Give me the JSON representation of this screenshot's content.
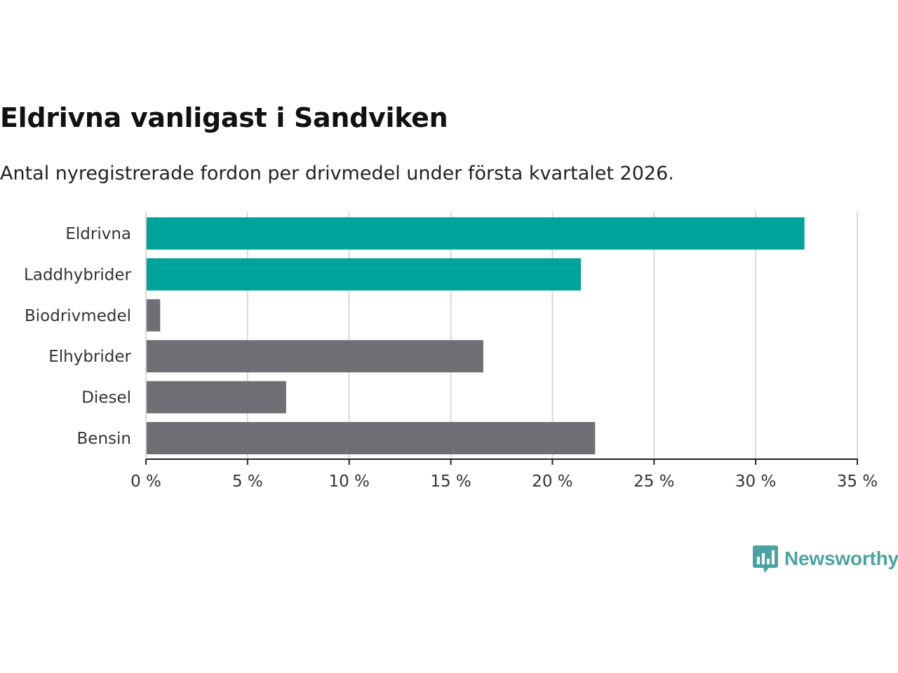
{
  "title": "Eldrivna vanligast i Sandviken",
  "subtitle": "Antal nyregistrerade fordon per drivmedel under första kvartalet 2026.",
  "brand": "Newsworthy",
  "colors": {
    "highlight": "#00a39a",
    "default": "#6f6e75",
    "grid": "#d9d9d9",
    "axis": "#222222",
    "brand": "#4aa3a2"
  },
  "chart_data": {
    "type": "bar",
    "orientation": "horizontal",
    "title": "Eldrivna vanligast i Sandviken",
    "subtitle": "Antal nyregistrerade fordon per drivmedel under första kvartalet 2026.",
    "categories": [
      "Eldrivna",
      "Laddhybrider",
      "Biodrivmedel",
      "Elhybrider",
      "Diesel",
      "Bensin"
    ],
    "values": [
      32.4,
      21.4,
      0.7,
      16.6,
      6.9,
      22.1
    ],
    "highlighted": [
      true,
      true,
      false,
      false,
      false,
      false
    ],
    "unit": "%",
    "xlim": [
      0,
      35
    ],
    "xticks": [
      0,
      5,
      10,
      15,
      20,
      25,
      30,
      35
    ],
    "tick_labels": [
      "0 %",
      "5 %",
      "10 %",
      "15 %",
      "20 %",
      "25 %",
      "30 %",
      "35 %"
    ],
    "grid": true,
    "xlabel": "",
    "ylabel": ""
  }
}
